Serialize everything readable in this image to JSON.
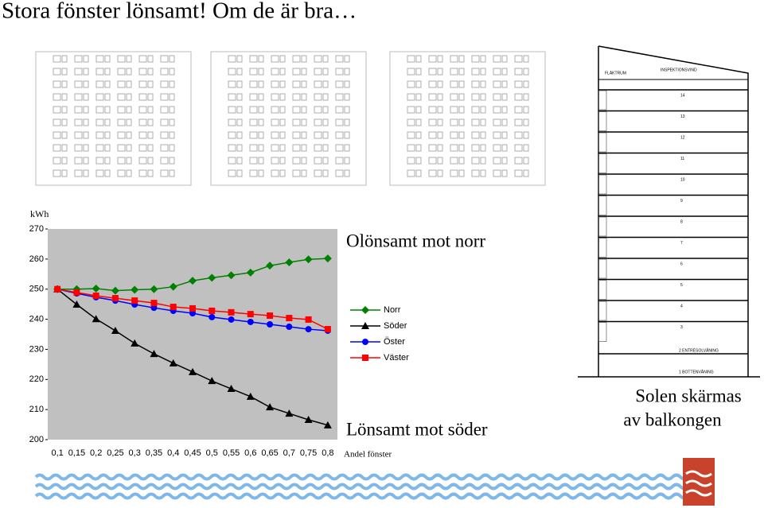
{
  "title": "Stora fönster lönsamt! Om de är bra…",
  "chart_data": {
    "type": "line",
    "y_label": "kWh",
    "x_label": "Andel fönster",
    "categories": [
      "0,1",
      "0,15",
      "0,2",
      "0,25",
      "0,3",
      "0,35",
      "0,4",
      "0,45",
      "0,5",
      "0,55",
      "0,6",
      "0,65",
      "0,7",
      "0,75",
      "0,8"
    ],
    "series": [
      {
        "name": "Norr",
        "color": "#008000",
        "marker": "diamond",
        "values": [
          250,
          250,
          250.2,
          249.5,
          249.8,
          250,
          250.8,
          252.8,
          253.8,
          254.6,
          255.5,
          257.8,
          258.9,
          259.9,
          260.2
        ]
      },
      {
        "name": "Söder",
        "color": "#000000",
        "marker": "triangle",
        "values": [
          250,
          244.9,
          240.1,
          236.2,
          232,
          228.5,
          225.4,
          222.5,
          219.5,
          216.9,
          214.3,
          210.8,
          208.7,
          206.6,
          204.8
        ]
      },
      {
        "name": "Öster",
        "color": "#0000ff",
        "marker": "circle",
        "values": [
          250,
          248.6,
          247.3,
          246.2,
          244.9,
          243.8,
          242.8,
          242,
          240.7,
          239.9,
          239.1,
          238.3,
          237.5,
          236.7,
          236.2
        ]
      },
      {
        "name": "Väster",
        "color": "#ff0000",
        "marker": "square",
        "values": [
          250,
          248.9,
          247.8,
          247,
          246.2,
          245.4,
          244.1,
          243.6,
          242.8,
          242.3,
          241.7,
          241.2,
          240.4,
          239.9,
          236.7
        ]
      }
    ],
    "ylim": [
      200,
      270
    ],
    "yticks": [
      200,
      210,
      220,
      230,
      240,
      250,
      260,
      270
    ],
    "plot_background": "#c0c0c0",
    "legend": "right"
  },
  "annotations": {
    "north": "Olönsamt mot norr",
    "south": "Lönsamt mot söder",
    "balcony": [
      "Solen skärmas",
      "av balkongen"
    ]
  },
  "section_drawing": {
    "top_labels": [
      "FLÄKTRUM",
      "INSPEKTIONSVIND"
    ],
    "floors": [
      "14",
      "13",
      "12",
      "11",
      "10",
      "9",
      "8",
      "7",
      "6",
      "5",
      "4",
      "3"
    ],
    "entresol": "2 ENTRÉSOLVÅNING",
    "ground": "1 BOTTENVÅNING"
  }
}
